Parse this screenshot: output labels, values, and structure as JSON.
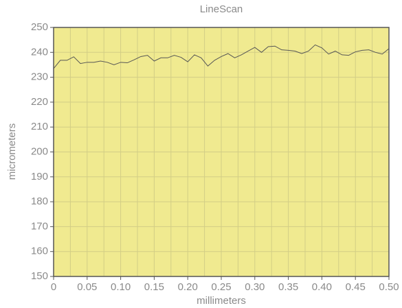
{
  "chart_data": {
    "type": "line",
    "title": "LineScan",
    "xlabel": "millimeters",
    "ylabel": "micrometers",
    "x": [
      0,
      0.01,
      0.02,
      0.03,
      0.04,
      0.05,
      0.06,
      0.07,
      0.08,
      0.09,
      0.1,
      0.11,
      0.12,
      0.13,
      0.14,
      0.15,
      0.16,
      0.17,
      0.18,
      0.19,
      0.2,
      0.21,
      0.22,
      0.23,
      0.24,
      0.25,
      0.26,
      0.27,
      0.28,
      0.29,
      0.3,
      0.31,
      0.32,
      0.33,
      0.34,
      0.35,
      0.36,
      0.37,
      0.38,
      0.39,
      0.4,
      0.41,
      0.42,
      0.43,
      0.44,
      0.45,
      0.46,
      0.47,
      0.48,
      0.49,
      0.5
    ],
    "series": [
      {
        "color": "#555555",
        "values": [
          233.5,
          236.8,
          236.8,
          238.2,
          235.5,
          236,
          236,
          236.5,
          236,
          235,
          236,
          235.8,
          237,
          238.3,
          238.8,
          236.5,
          237.8,
          237.8,
          238.8,
          238,
          236.2,
          239,
          237.8,
          234.5,
          236.8,
          238.3,
          239.5,
          237.8,
          239,
          240.5,
          242,
          240,
          242.3,
          242.5,
          241,
          240.8,
          240.5,
          239.5,
          240.5,
          243,
          241.8,
          239.3,
          240.5,
          239,
          238.8,
          240.2,
          240.8,
          241,
          240,
          239.3,
          241.5
        ]
      }
    ],
    "xlim": [
      0,
      0.5
    ],
    "ylim": [
      150,
      250
    ],
    "xticks": [
      0,
      0.05,
      {
        "value": 0.1,
        "label": "0.10"
      },
      0.15,
      {
        "value": 0.2,
        "label": "0.20"
      },
      0.25,
      {
        "value": 0.3,
        "label": "0.30"
      },
      0.35,
      {
        "value": 0.4,
        "label": "0.40"
      },
      0.45,
      {
        "value": 0.5,
        "label": "0.50"
      }
    ],
    "xminorticks": [
      0.025,
      0.075,
      0.125,
      0.175,
      0.225,
      0.275,
      0.325,
      0.375,
      0.425,
      0.475
    ],
    "yticks": [
      150,
      160,
      170,
      180,
      190,
      200,
      210,
      220,
      230,
      240,
      250
    ],
    "grid": true,
    "background": "#f0ea90"
  }
}
